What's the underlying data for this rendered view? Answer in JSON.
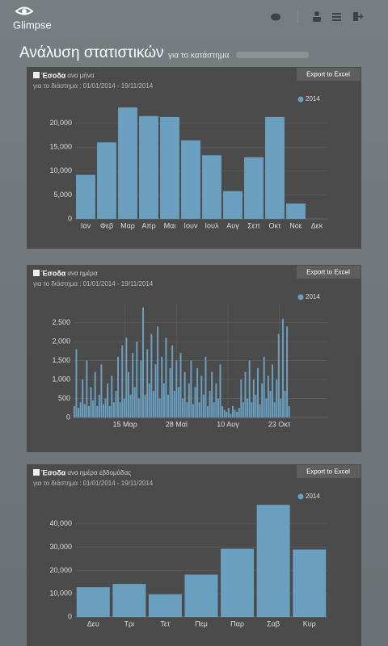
{
  "header": {
    "app_name": "Glimpse",
    "title": "Ανάλυση στατιστικών",
    "subtitle": "για το κατάστημα"
  },
  "chart_data": [
    {
      "type": "bar",
      "title": "Έσοδα",
      "subtitle": "ανα μήνα",
      "period": "για το διάστημα : 01/01/2014 - 19/11/2014",
      "button": "Export to Excel",
      "categories": [
        "Ιαν",
        "Φεβ",
        "Μαρ",
        "Απρ",
        "Μαι",
        "Ιουν",
        "Ιουλ",
        "Αυγ",
        "Σεπ",
        "Οκτ",
        "Νοε",
        "Δεκ"
      ],
      "series": [
        {
          "name": "2014",
          "color": "#6a9fc0",
          "values": [
            9200,
            16000,
            23300,
            21500,
            21300,
            16400,
            13300,
            5800,
            12900,
            21300,
            3200,
            0
          ]
        }
      ],
      "ylim": [
        0,
        25000
      ],
      "yticks": [
        0,
        {
          "value": 5000,
          "label": "5,000"
        },
        {
          "value": 10000,
          "label": "10,000"
        },
        {
          "value": 15000,
          "label": "15,000"
        },
        {
          "value": 20000,
          "label": "20,000"
        }
      ],
      "grid": true
    },
    {
      "type": "bar",
      "title": "Έσοδα",
      "subtitle": "ανα ημέρα",
      "period": "για το διάστημα : 01/01/2014 - 19/11/2014",
      "button": "Export to Excel",
      "x": [
        1,
        4,
        7,
        10,
        13,
        16,
        19,
        22,
        25,
        28,
        31,
        34,
        37,
        40,
        43,
        46,
        49,
        52,
        55,
        58,
        61,
        64,
        67,
        70,
        73,
        76,
        79,
        82,
        85,
        88,
        91,
        94,
        97,
        100,
        103,
        106,
        109,
        112,
        115,
        118,
        121,
        124,
        127,
        130,
        133,
        136,
        139,
        142,
        145,
        148,
        151,
        154,
        157,
        160,
        163,
        166,
        169,
        172,
        175,
        178,
        181,
        184,
        187,
        190,
        193,
        196,
        199,
        202,
        205,
        208,
        211,
        214,
        217,
        220,
        223,
        226,
        229,
        232,
        235,
        238,
        241,
        244,
        247,
        250,
        253,
        256,
        259,
        262,
        265,
        268,
        271,
        274,
        277,
        280,
        283,
        286,
        289,
        292,
        295,
        298,
        301,
        304,
        307,
        310
      ],
      "series": [
        {
          "name": "2014",
          "color": "#6a9fc0",
          "values": [
            300,
            1800,
            250,
            400,
            1000,
            350,
            1500,
            300,
            800,
            450,
            1200,
            300,
            600,
            1400,
            350,
            500,
            900,
            300,
            1100,
            400,
            700,
            1600,
            400,
            1900,
            500,
            2100,
            1200,
            600,
            1700,
            800,
            2000,
            500,
            1500,
            2900,
            600,
            1800,
            900,
            2200,
            700,
            1400,
            2400,
            500,
            1600,
            900,
            2100,
            600,
            1300,
            1900,
            700,
            1500,
            800,
            1700,
            500,
            1200,
            400,
            900,
            1500,
            350,
            800,
            1300,
            400,
            1100,
            600,
            1600,
            300,
            700,
            1200,
            400,
            900,
            500,
            1400,
            300,
            200,
            150,
            250,
            100,
            300,
            200,
            150,
            250,
            1000,
            400,
            1200,
            500,
            1500,
            400,
            1000,
            600,
            1300,
            350,
            900,
            1600,
            500,
            1100,
            700,
            1400,
            400,
            1000,
            2200,
            500,
            2600,
            700,
            2400,
            300
          ]
        }
      ],
      "xlim": [
        0,
        365
      ],
      "xticks": [
        {
          "value": 74,
          "label": "15 Μαρ"
        },
        {
          "value": 148,
          "label": "28 Μαϊ"
        },
        {
          "value": 222,
          "label": "10 Αυγ"
        },
        {
          "value": 296,
          "label": "23 Οκτ"
        }
      ],
      "ylim": [
        0,
        3000
      ],
      "yticks": [
        0,
        500,
        {
          "value": 1000,
          "label": "1,000"
        },
        {
          "value": 1500,
          "label": "1,500"
        },
        {
          "value": 2000,
          "label": "2,000"
        },
        {
          "value": 2500,
          "label": "2,500"
        }
      ],
      "grid": true
    },
    {
      "type": "bar",
      "title": "Έσοδα",
      "subtitle": "ανα ημέρα εβδομάδας",
      "period": "για το διάστημα : 01/01/2014 - 19/11/2014",
      "button": "Export to Excel",
      "categories": [
        "Δευ",
        "Τρι",
        "Τετ",
        "Πεμ",
        "Παρ",
        "Σαβ",
        "Κυρ"
      ],
      "series": [
        {
          "name": "2014",
          "color": "#6a9fc0",
          "values": [
            12800,
            14200,
            9700,
            18200,
            29300,
            48200,
            29000
          ]
        }
      ],
      "ylim": [
        0,
        50000
      ],
      "yticks": [
        0,
        {
          "value": 10000,
          "label": "10,000"
        },
        {
          "value": 20000,
          "label": "20,000"
        },
        {
          "value": 30000,
          "label": "30,000"
        },
        {
          "value": 40000,
          "label": "40,000"
        }
      ],
      "grid": true
    }
  ]
}
